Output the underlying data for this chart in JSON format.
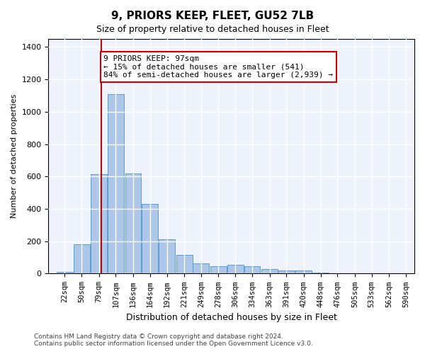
{
  "title": "9, PRIORS KEEP, FLEET, GU52 7LB",
  "subtitle": "Size of property relative to detached houses in Fleet",
  "xlabel": "Distribution of detached houses by size in Fleet",
  "ylabel": "Number of detached properties",
  "bar_color": "#aec6e8",
  "bar_edge_color": "#5a9fd4",
  "background_color": "#eef2fb",
  "grid_color": "#ffffff",
  "annotation_box_color": "#cc0000",
  "annotation_text": "9 PRIORS KEEP: 97sqm\n← 15% of detached houses are smaller (541)\n84% of semi-detached houses are larger (2,939) →",
  "vline_x": 97,
  "vline_color": "#cc0000",
  "categories": [
    "22sqm",
    "50sqm",
    "79sqm",
    "107sqm",
    "136sqm",
    "164sqm",
    "192sqm",
    "221sqm",
    "249sqm",
    "278sqm",
    "306sqm",
    "334sqm",
    "363sqm",
    "391sqm",
    "420sqm",
    "448sqm",
    "476sqm",
    "505sqm",
    "533sqm",
    "562sqm",
    "590sqm"
  ],
  "bin_edges": [
    22,
    50,
    79,
    107,
    136,
    164,
    192,
    221,
    249,
    278,
    306,
    334,
    363,
    391,
    420,
    448,
    476,
    505,
    533,
    562,
    590
  ],
  "bar_heights": [
    10,
    180,
    615,
    1110,
    620,
    430,
    210,
    115,
    65,
    45,
    55,
    45,
    30,
    20,
    20,
    5,
    0,
    0,
    0,
    0
  ],
  "ylim": [
    0,
    1450
  ],
  "yticks": [
    0,
    200,
    400,
    600,
    800,
    1000,
    1200,
    1400
  ],
  "footer": "Contains HM Land Registry data © Crown copyright and database right 2024.\nContains public sector information licensed under the Open Government Licence v3.0."
}
